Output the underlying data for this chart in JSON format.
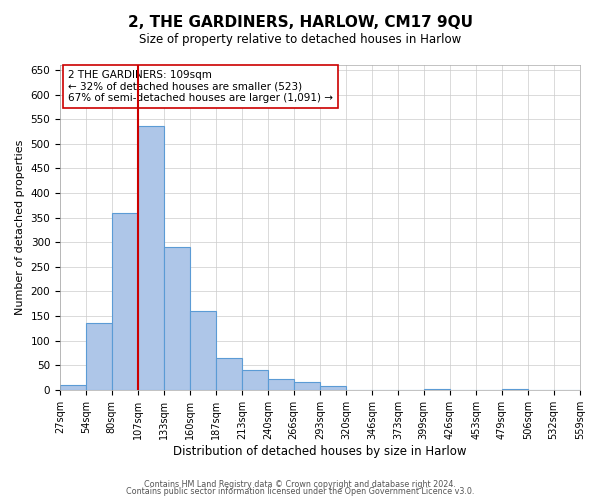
{
  "title": "2, THE GARDINERS, HARLOW, CM17 9QU",
  "subtitle": "Size of property relative to detached houses in Harlow",
  "xlabel": "Distribution of detached houses by size in Harlow",
  "ylabel": "Number of detached properties",
  "bar_values": [
    10,
    135,
    360,
    537,
    290,
    160,
    65,
    40,
    22,
    15,
    8,
    0,
    0,
    0,
    1,
    0,
    0,
    1,
    0,
    0
  ],
  "bar_color": "#aec6e8",
  "bar_edge_color": "#5b9bd5",
  "vline_x": 107,
  "vline_color": "#cc0000",
  "ylim": [
    0,
    660
  ],
  "yticks": [
    0,
    50,
    100,
    150,
    200,
    250,
    300,
    350,
    400,
    450,
    500,
    550,
    600,
    650
  ],
  "bin_edges": [
    27,
    54,
    80,
    107,
    133,
    160,
    187,
    213,
    240,
    266,
    293,
    320,
    346,
    373,
    399,
    426,
    453,
    479,
    506,
    532,
    559
  ],
  "xtick_labels": [
    "27sqm",
    "54sqm",
    "80sqm",
    "107sqm",
    "133sqm",
    "160sqm",
    "187sqm",
    "213sqm",
    "240sqm",
    "266sqm",
    "293sqm",
    "320sqm",
    "346sqm",
    "373sqm",
    "399sqm",
    "426sqm",
    "453sqm",
    "479sqm",
    "506sqm",
    "532sqm",
    "559sqm"
  ],
  "annotation_text": "2 THE GARDINERS: 109sqm\n← 32% of detached houses are smaller (523)\n67% of semi-detached houses are larger (1,091) →",
  "annotation_box_color": "#ffffff",
  "annotation_box_edge": "#cc0000",
  "footer1": "Contains HM Land Registry data © Crown copyright and database right 2024.",
  "footer2": "Contains public sector information licensed under the Open Government Licence v3.0.",
  "background_color": "#ffffff",
  "grid_color": "#cccccc"
}
